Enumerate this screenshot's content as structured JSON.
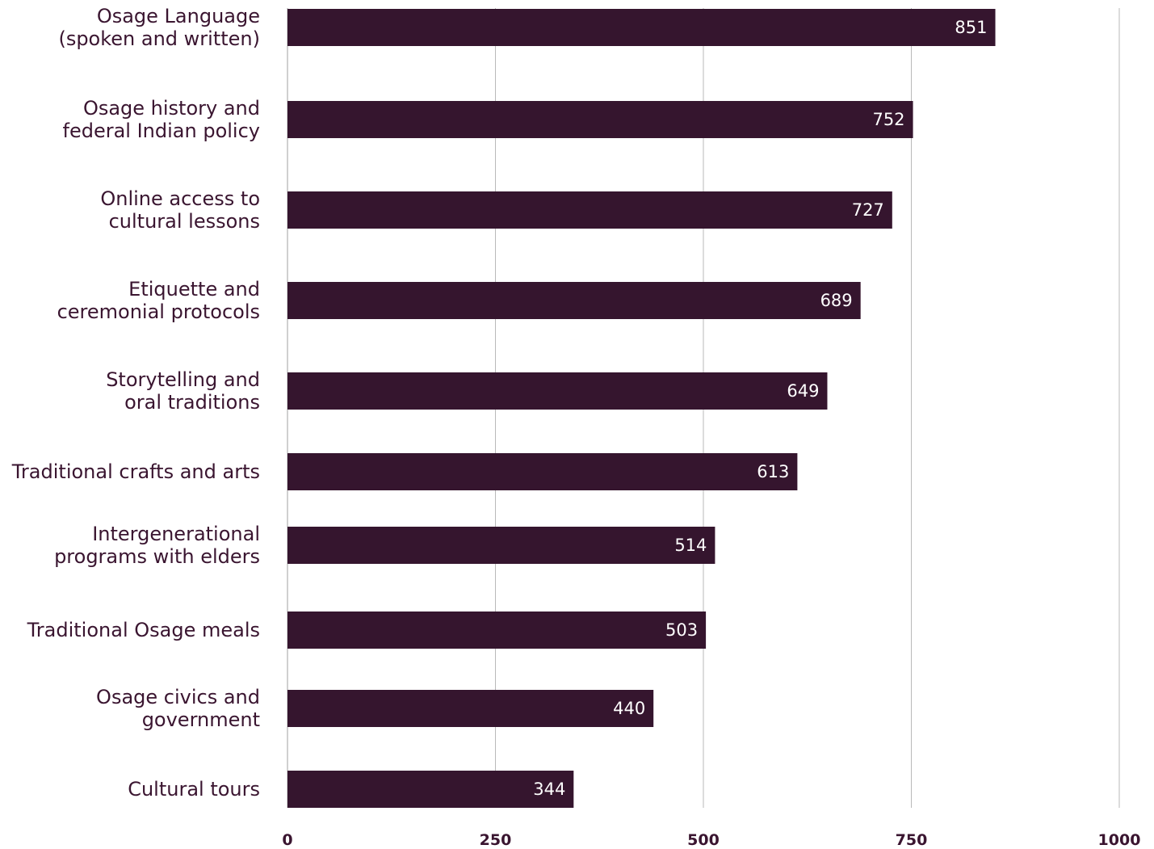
{
  "chart_data": {
    "type": "bar",
    "orientation": "horizontal",
    "categories": [
      [
        "Osage Language",
        "(spoken and written)"
      ],
      [
        "Osage history and",
        "federal Indian policy"
      ],
      [
        "Online access to",
        "cultural lessons"
      ],
      [
        "Etiquette and",
        "ceremonial protocols"
      ],
      [
        "Storytelling and",
        "oral traditions"
      ],
      [
        "Traditional crafts and arts"
      ],
      [
        "Intergenerational",
        "programs with elders"
      ],
      [
        "Traditional Osage meals"
      ],
      [
        "Osage civics and",
        "government"
      ],
      [
        "Cultural tours"
      ]
    ],
    "values": [
      851,
      752,
      727,
      689,
      649,
      613,
      514,
      503,
      440,
      344
    ],
    "value_labels": [
      "851",
      "752",
      "727",
      "689",
      "649",
      "613",
      "514",
      "503",
      "440",
      "344"
    ],
    "xlim": [
      0,
      1000
    ],
    "xticks": [
      0,
      250,
      500,
      750,
      1000
    ],
    "xtick_labels": [
      "0",
      "250",
      "500",
      "750",
      "1000"
    ],
    "grid": "vertical",
    "title": "",
    "xlabel": "",
    "ylabel": "",
    "bar_color": "#35152e",
    "label_color": "#3a1530",
    "value_label_color": "#ffffff"
  }
}
